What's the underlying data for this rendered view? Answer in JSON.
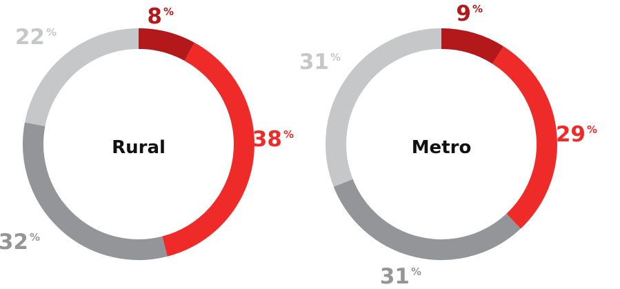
{
  "chart_data": [
    {
      "type": "pie",
      "title": "Rural",
      "categories": [
        "",
        "",
        "",
        ""
      ],
      "values": [
        8,
        38,
        32,
        22
      ],
      "labels": [
        "8",
        "38",
        "32",
        "22"
      ],
      "unit": "%",
      "colors": [
        "#b3191b",
        "#ee2b29",
        "#939598",
        "#c6c7c9"
      ]
    },
    {
      "type": "pie",
      "title": "Metro",
      "categories": [
        "",
        "",
        "",
        ""
      ],
      "values": [
        9,
        29,
        31,
        31
      ],
      "labels": [
        "9",
        "29",
        "31",
        "31"
      ],
      "unit": "%",
      "colors": [
        "#b3191b",
        "#ee2b29",
        "#939598",
        "#c6c7c9"
      ]
    }
  ]
}
